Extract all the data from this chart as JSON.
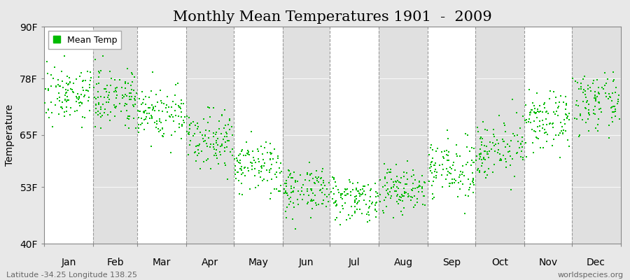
{
  "title": "Monthly Mean Temperatures 1901  -  2009",
  "ylabel": "Temperature",
  "xlabel_labels": [
    "Jan",
    "Feb",
    "Mar",
    "Apr",
    "May",
    "Jun",
    "Jul",
    "Aug",
    "Sep",
    "Oct",
    "Nov",
    "Dec"
  ],
  "yticks": [
    40,
    53,
    65,
    78,
    90
  ],
  "ytick_labels": [
    "40F",
    "53F",
    "65F",
    "78F",
    "90F"
  ],
  "ylim": [
    40,
    90
  ],
  "dot_color": "#00bb00",
  "dot_size": 3,
  "bg_color_light": "#e8e8e8",
  "bg_color_dark": "#d8d8d8",
  "grid_color": "#999999",
  "title_fontsize": 15,
  "axis_fontsize": 10,
  "legend_label": "Mean Temp",
  "footer_left": "Latitude -34.25 Longitude 138.25",
  "footer_right": "worldspecies.org",
  "num_years": 109,
  "monthly_means_F": [
    74.5,
    74.0,
    70.0,
    64.5,
    57.5,
    52.5,
    50.5,
    52.5,
    57.0,
    62.0,
    68.0,
    72.5
  ],
  "monthly_stds_F": [
    3.2,
    3.2,
    3.2,
    3.2,
    3.2,
    2.8,
    2.5,
    2.8,
    3.2,
    3.2,
    3.2,
    3.2
  ],
  "monthly_widths": [
    31,
    28,
    31,
    30,
    31,
    30,
    31,
    31,
    30,
    31,
    30,
    31
  ]
}
